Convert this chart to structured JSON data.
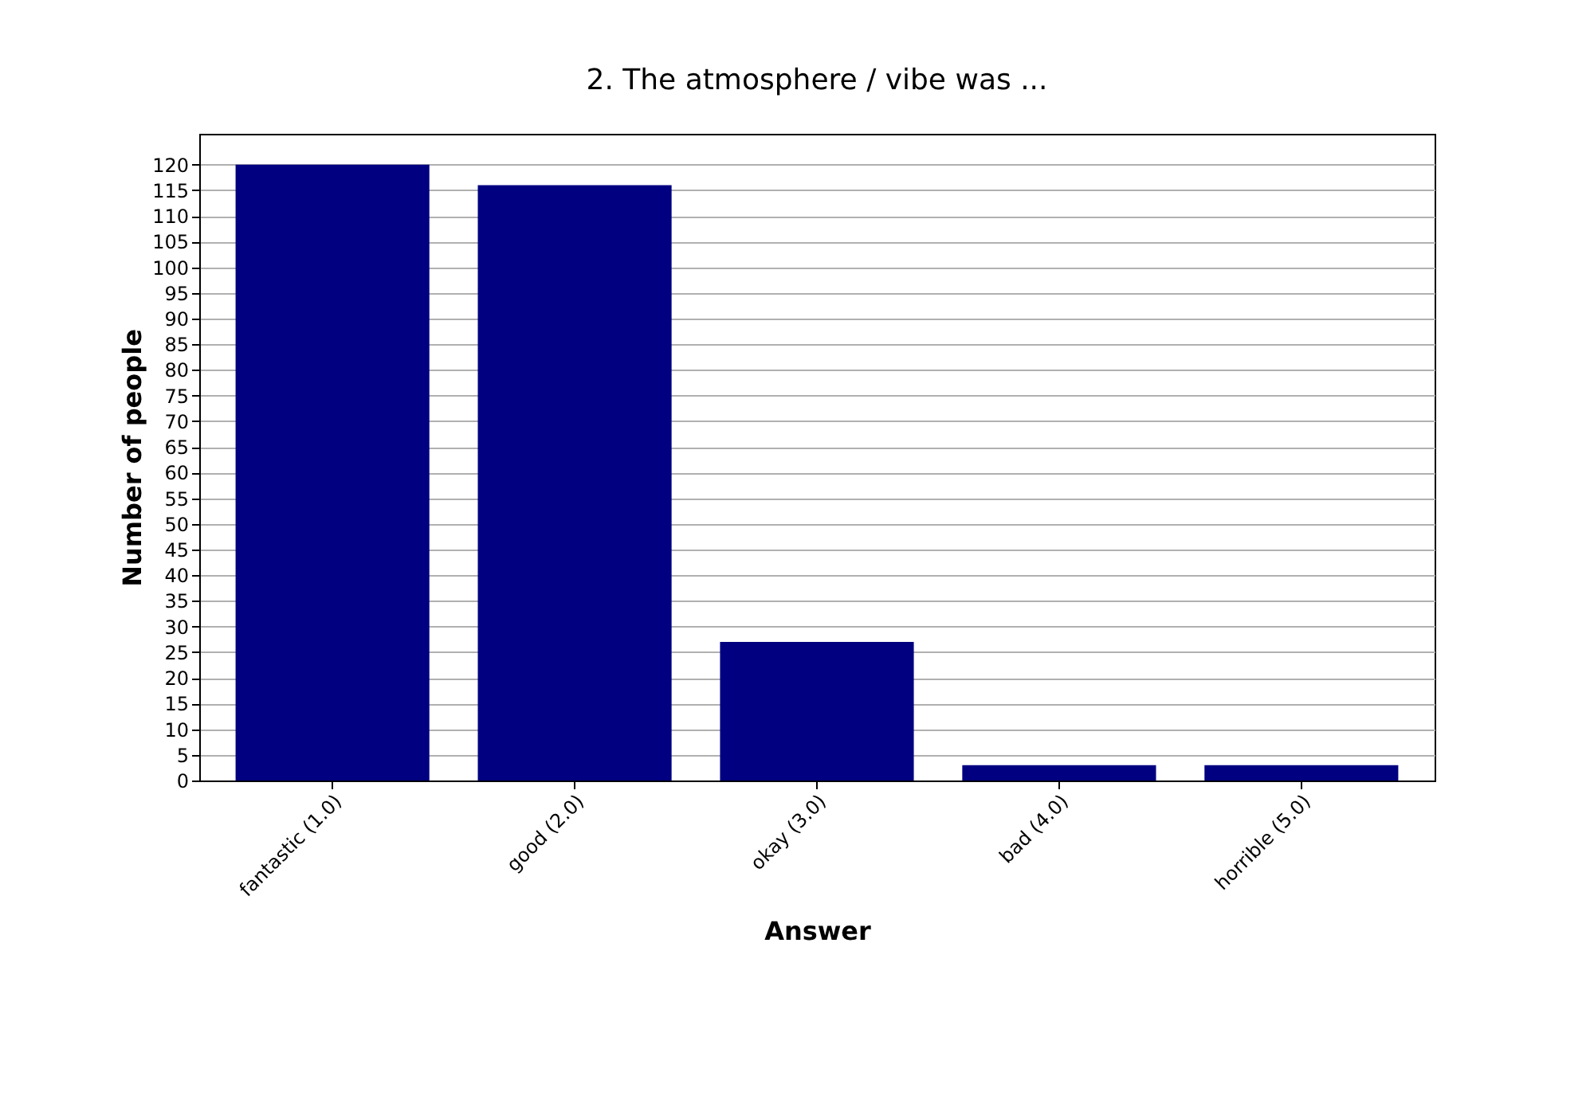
{
  "chart_data": {
    "type": "bar",
    "title": "2. The atmosphere / vibe was ...",
    "xlabel": "Answer",
    "ylabel": "Number of people",
    "categories": [
      "fantastic (1.0)",
      "good (2.0)",
      "okay (3.0)",
      "bad (4.0)",
      "horrible (5.0)"
    ],
    "values": [
      120,
      116,
      27,
      3,
      3
    ],
    "color": "#000080",
    "ylim": [
      0,
      126
    ],
    "yticks": [
      0,
      5,
      10,
      15,
      20,
      25,
      30,
      35,
      40,
      45,
      50,
      55,
      60,
      65,
      70,
      75,
      80,
      85,
      90,
      95,
      100,
      105,
      110,
      115,
      120
    ],
    "grid": "y"
  }
}
